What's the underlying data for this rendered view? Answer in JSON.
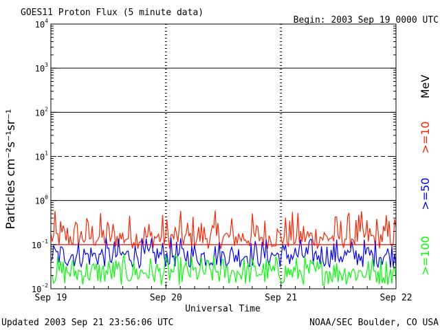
{
  "header": {
    "title": "GOES11 Proton Flux (5 minute data)",
    "begin": "Begin: 2003 Sep 19 0000 UTC"
  },
  "footer": {
    "updated": "Updated 2003 Sep 21 23:56:06 UTC",
    "credit": "NOAA/SEC Boulder, CO USA"
  },
  "chart_data": {
    "type": "line",
    "title": "GOES11 Proton Flux (5 minute data)",
    "xlabel": "Universal Time",
    "ylabel": "Particles cm⁻²s⁻¹sr⁻¹",
    "yscale": "log",
    "ylim": [
      0.01,
      10000
    ],
    "xlim": [
      "2003-09-19",
      "2003-09-22"
    ],
    "x_ticks": [
      "Sep 19",
      "Sep 20",
      "Sep 21",
      "Sep 22"
    ],
    "y_ticks": [
      {
        "base": "10",
        "exp": "-2"
      },
      {
        "base": "10",
        "exp": "-1"
      },
      {
        "base": "10",
        "exp": "0"
      },
      {
        "base": "10",
        "exp": "1"
      },
      {
        "base": "10",
        "exp": "2"
      },
      {
        "base": "10",
        "exp": "3"
      },
      {
        "base": "10",
        "exp": "4"
      }
    ],
    "legend_unit": "MeV",
    "reference_lines": [
      {
        "y": 10,
        "style": "dashed"
      },
      {
        "y": 0.1,
        "style": "solid",
        "color": "#ff0000"
      }
    ],
    "series": [
      {
        "name": ">=10",
        "color": "#ff2200",
        "typical_range": [
          0.08,
          0.6
        ],
        "median": 0.15
      },
      {
        "name": ">=50",
        "color": "#0000ff",
        "typical_range": [
          0.03,
          0.15
        ],
        "median": 0.06
      },
      {
        "name": ">=100",
        "color": "#00ff00",
        "typical_range": [
          0.012,
          0.06
        ],
        "median": 0.025
      }
    ],
    "grid": true,
    "legend": "right"
  }
}
